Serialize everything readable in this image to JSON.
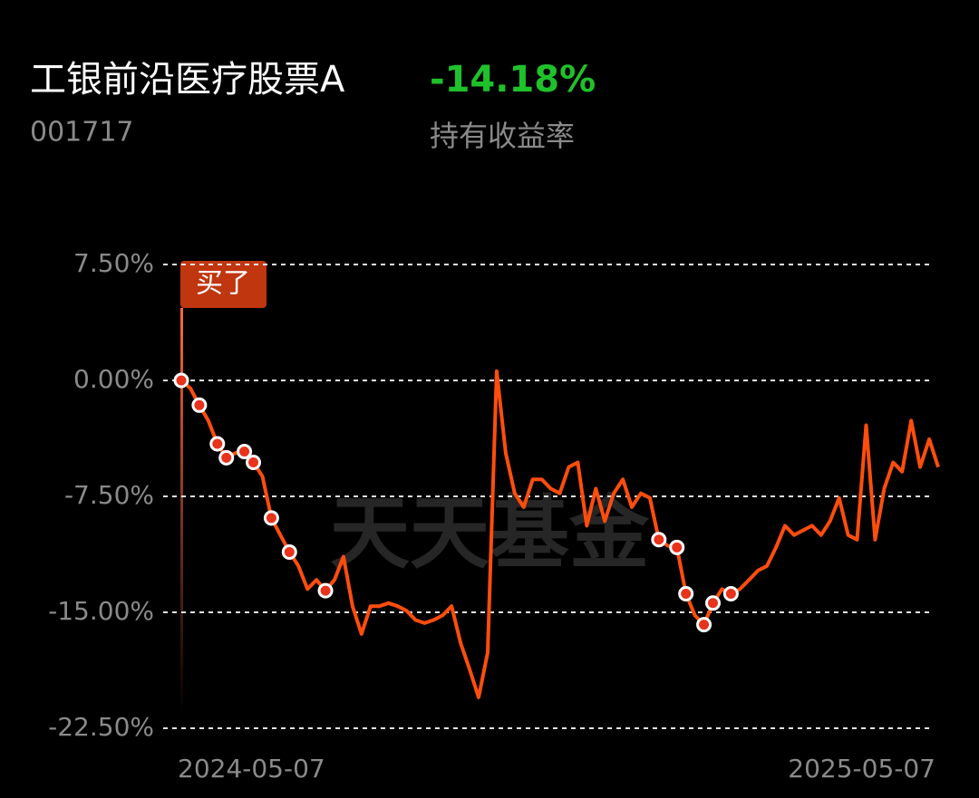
{
  "chart_data": {
    "type": "line",
    "title": "工银前沿医疗股票A",
    "headline_value": "-14.18%",
    "code": "001717",
    "subtitle": "持有收益率",
    "annotation": "买了",
    "watermark": "天天基金",
    "categories": [
      "2024-05-07",
      null,
      null,
      null,
      null,
      null,
      null,
      null,
      null,
      null,
      null,
      null,
      null,
      null,
      null,
      null,
      null,
      null,
      null,
      null,
      null,
      null,
      null,
      null,
      null,
      null,
      null,
      null,
      null,
      null,
      null,
      null,
      null,
      null,
      null,
      null,
      null,
      null,
      null,
      null,
      null,
      null,
      null,
      null,
      null,
      null,
      null,
      null,
      null,
      null,
      null,
      null,
      null,
      null,
      null,
      null,
      null,
      null,
      null,
      null,
      null,
      null,
      null,
      null,
      null,
      null,
      null,
      null,
      null,
      null,
      null,
      null,
      null,
      null,
      null,
      null,
      null,
      null,
      null,
      null,
      null,
      null,
      null,
      null,
      "2025-05-07"
    ],
    "series": [
      {
        "color": "#ff4d0d",
        "values": [
          0,
          -0.5,
          -1.6,
          -2.6,
          -4.1,
          -5.0,
          -4.7,
          -4.6,
          -5.3,
          -6.2,
          -8.9,
          -10.0,
          -11.1,
          -12.0,
          -13.5,
          -12.9,
          -13.6,
          -12.9,
          -11.4,
          -14.6,
          -16.4,
          -14.6,
          -14.6,
          -14.4,
          -14.6,
          -14.9,
          -15.5,
          -15.7,
          -15.5,
          -15.2,
          -14.6,
          -17.0,
          -18.7,
          -20.5,
          -17.6,
          0.6,
          -4.7,
          -7.3,
          -8.2,
          -6.4,
          -6.4,
          -7.0,
          -7.3,
          -5.6,
          -5.3,
          -9.4,
          -7.0,
          -9.1,
          -7.3,
          -6.4,
          -8.2,
          -7.3,
          -7.6,
          -10.3,
          -10.7,
          -10.8,
          -13.8,
          -15.2,
          -15.8,
          -14.4,
          -13.5,
          -13.8,
          -13.5,
          -12.9,
          -12.3,
          -12.0,
          -10.8,
          -9.4,
          -10.0,
          -9.7,
          -9.4,
          -10.0,
          -9.1,
          -7.6,
          -10.0,
          -10.3,
          -2.9,
          -10.3,
          -7.0,
          -5.3,
          -5.9,
          -2.6,
          -5.6,
          -3.8,
          -5.6
        ]
      },
      {
        "color": "#e8321c",
        "marker": "dot",
        "values": [
          0,
          null,
          -1.6,
          null,
          -4.1,
          -5.0,
          null,
          -4.6,
          -5.3,
          null,
          -8.9,
          null,
          -11.1,
          null,
          null,
          null,
          -13.6,
          null,
          null,
          null,
          null,
          null,
          null,
          null,
          null,
          null,
          null,
          null,
          null,
          null,
          null,
          null,
          null,
          null,
          null,
          null,
          null,
          null,
          null,
          null,
          null,
          null,
          null,
          null,
          null,
          null,
          null,
          null,
          null,
          null,
          null,
          null,
          null,
          -10.3,
          null,
          -10.8,
          -13.8,
          null,
          -15.8,
          -14.4,
          null,
          -13.8,
          null,
          null,
          null,
          null,
          null,
          null,
          null,
          null,
          null,
          null,
          null,
          null,
          null,
          null,
          null,
          null,
          null,
          null,
          null,
          null,
          null,
          null,
          null
        ]
      }
    ],
    "ylim": [
      -22.5,
      7.5
    ],
    "yticks": [
      {
        "value": 7.5,
        "label": "7.50%"
      },
      {
        "value": 0,
        "label": "0.00%"
      },
      {
        "value": -7.5,
        "label": "-7.50%"
      },
      {
        "value": -15,
        "label": "-15.00%"
      },
      {
        "value": -22.5,
        "label": "-22.50%"
      }
    ],
    "grid": true
  }
}
